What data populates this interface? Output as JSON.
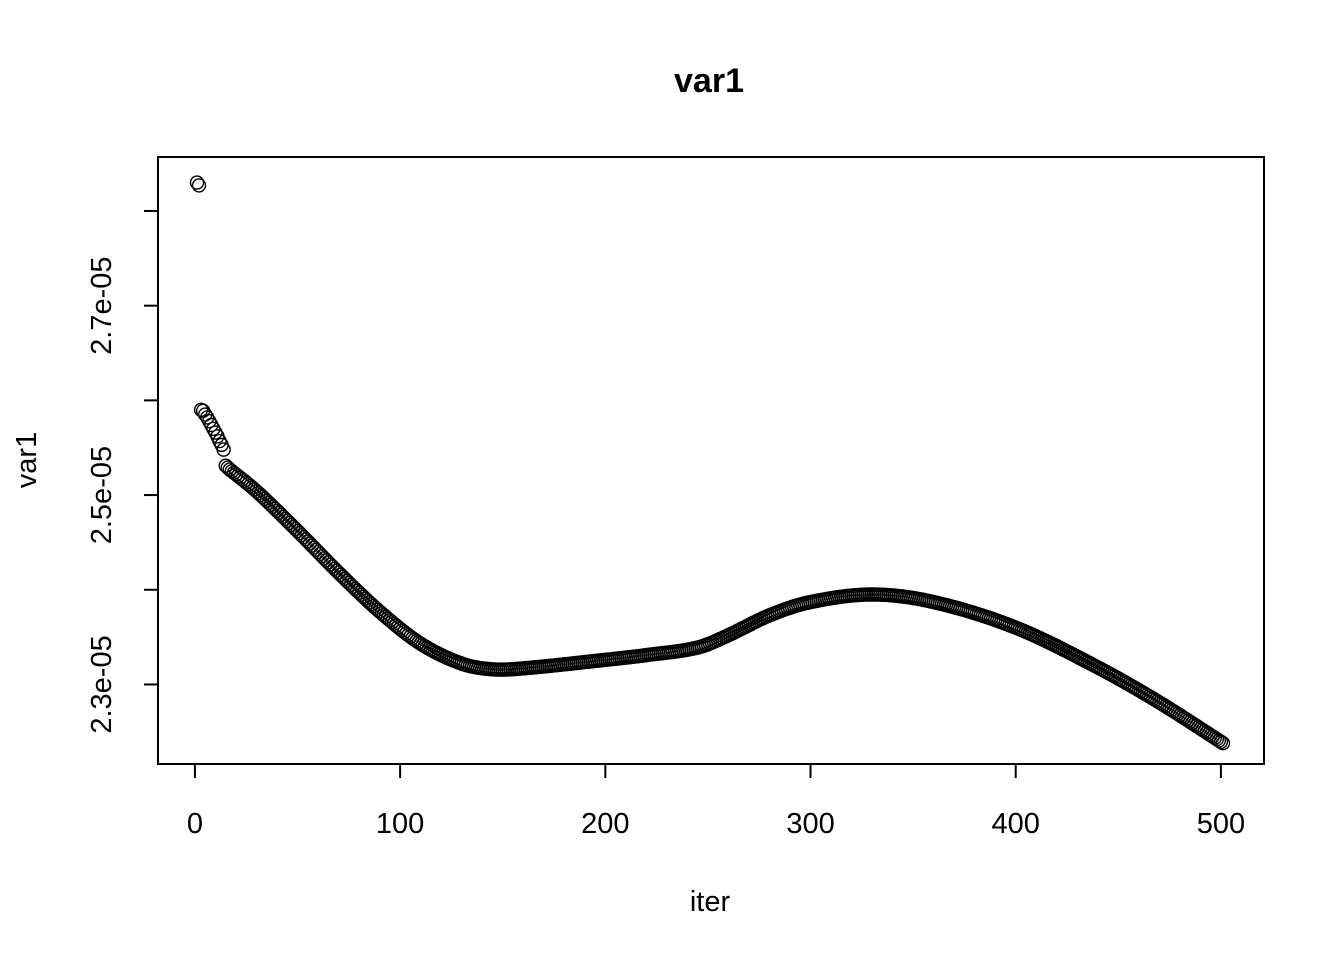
{
  "chart_data": {
    "type": "scatter",
    "title": "var1",
    "xlabel": "iter",
    "ylabel": "var1",
    "xlim": [
      -18,
      521
    ],
    "ylim": [
      2.216e-05,
      2.857e-05
    ],
    "xticks": [
      0,
      100,
      200,
      300,
      400,
      500
    ],
    "yticks": [
      2.3e-05,
      2.4e-05,
      2.5e-05,
      2.6e-05,
      2.7e-05,
      2.8e-05
    ],
    "ytick_labels": [
      "2.3e-05",
      "",
      "2.5e-05",
      "",
      "2.7e-05",
      ""
    ],
    "grid": false,
    "marker": "open-circle",
    "marker_color": "#000000",
    "x_range": [
      1,
      501
    ],
    "early_points": [
      {
        "x": 1,
        "y": 2.83e-05
      },
      {
        "x": 2,
        "y": 2.827e-05
      },
      {
        "x": 3,
        "y": 2.59e-05
      },
      {
        "x": 4,
        "y": 2.589e-05
      },
      {
        "x": 5,
        "y": 2.585e-05
      },
      {
        "x": 6,
        "y": 2.582e-05
      },
      {
        "x": 7,
        "y": 2.578e-05
      },
      {
        "x": 8,
        "y": 2.574e-05
      },
      {
        "x": 9,
        "y": 2.57e-05
      },
      {
        "x": 10,
        "y": 2.566e-05
      },
      {
        "x": 11,
        "y": 2.562e-05
      },
      {
        "x": 12,
        "y": 2.557e-05
      },
      {
        "x": 13,
        "y": 2.553e-05
      },
      {
        "x": 14,
        "y": 2.548e-05
      },
      {
        "x": 15,
        "y": 2.531e-05
      },
      {
        "x": 16,
        "y": 2.529e-05
      },
      {
        "x": 17,
        "y": 2.527e-05
      }
    ],
    "curve_knots": [
      {
        "x": 17,
        "y": 2.527e-05
      },
      {
        "x": 30,
        "y": 2.504e-05
      },
      {
        "x": 50,
        "y": 2.462e-05
      },
      {
        "x": 70,
        "y": 2.418e-05
      },
      {
        "x": 90,
        "y": 2.377e-05
      },
      {
        "x": 110,
        "y": 2.343e-05
      },
      {
        "x": 130,
        "y": 2.322e-05
      },
      {
        "x": 145,
        "y": 2.316e-05
      },
      {
        "x": 160,
        "y": 2.317e-05
      },
      {
        "x": 200,
        "y": 2.326e-05
      },
      {
        "x": 220,
        "y": 2.331e-05
      },
      {
        "x": 245,
        "y": 2.339e-05
      },
      {
        "x": 260,
        "y": 2.352e-05
      },
      {
        "x": 280,
        "y": 2.373e-05
      },
      {
        "x": 300,
        "y": 2.387e-05
      },
      {
        "x": 330,
        "y": 2.395e-05
      },
      {
        "x": 360,
        "y": 2.387e-05
      },
      {
        "x": 400,
        "y": 2.36e-05
      },
      {
        "x": 440,
        "y": 2.318e-05
      },
      {
        "x": 470,
        "y": 2.281e-05
      },
      {
        "x": 501,
        "y": 2.238e-05
      }
    ]
  }
}
